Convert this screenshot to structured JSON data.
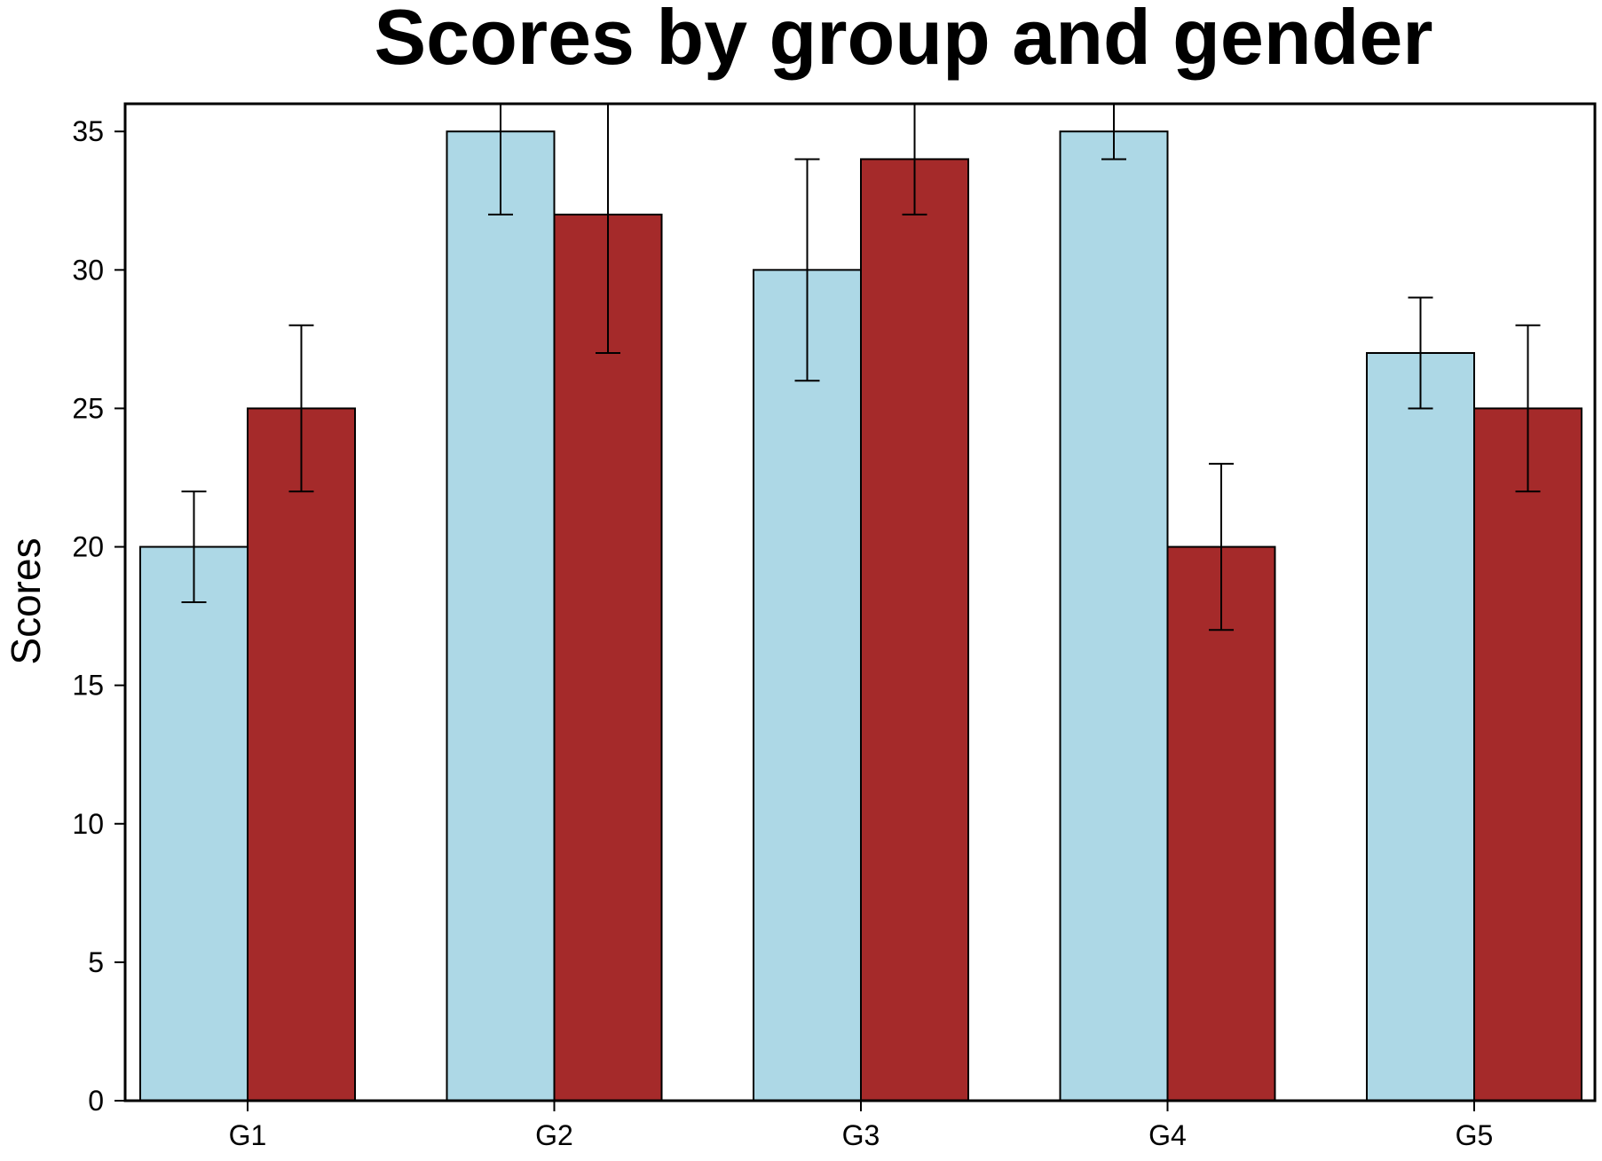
{
  "chart_data": {
    "type": "bar",
    "title": "Scores by group and gender",
    "xlabel": "",
    "ylabel": "Scores",
    "categories": [
      "G1",
      "G2",
      "G3",
      "G4",
      "G5"
    ],
    "ylim": [
      0,
      36
    ],
    "yticks": [
      0,
      5,
      10,
      15,
      20,
      25,
      30,
      35
    ],
    "grid": false,
    "legend": "none",
    "series": [
      {
        "color": "#add8e6",
        "values": [
          20,
          35,
          30,
          35,
          27
        ],
        "errors": [
          2,
          3,
          4,
          1,
          2
        ]
      },
      {
        "color": "#a52a2a",
        "values": [
          25,
          32,
          34,
          20,
          25
        ],
        "errors": [
          3,
          5,
          2,
          3,
          3
        ]
      }
    ]
  }
}
